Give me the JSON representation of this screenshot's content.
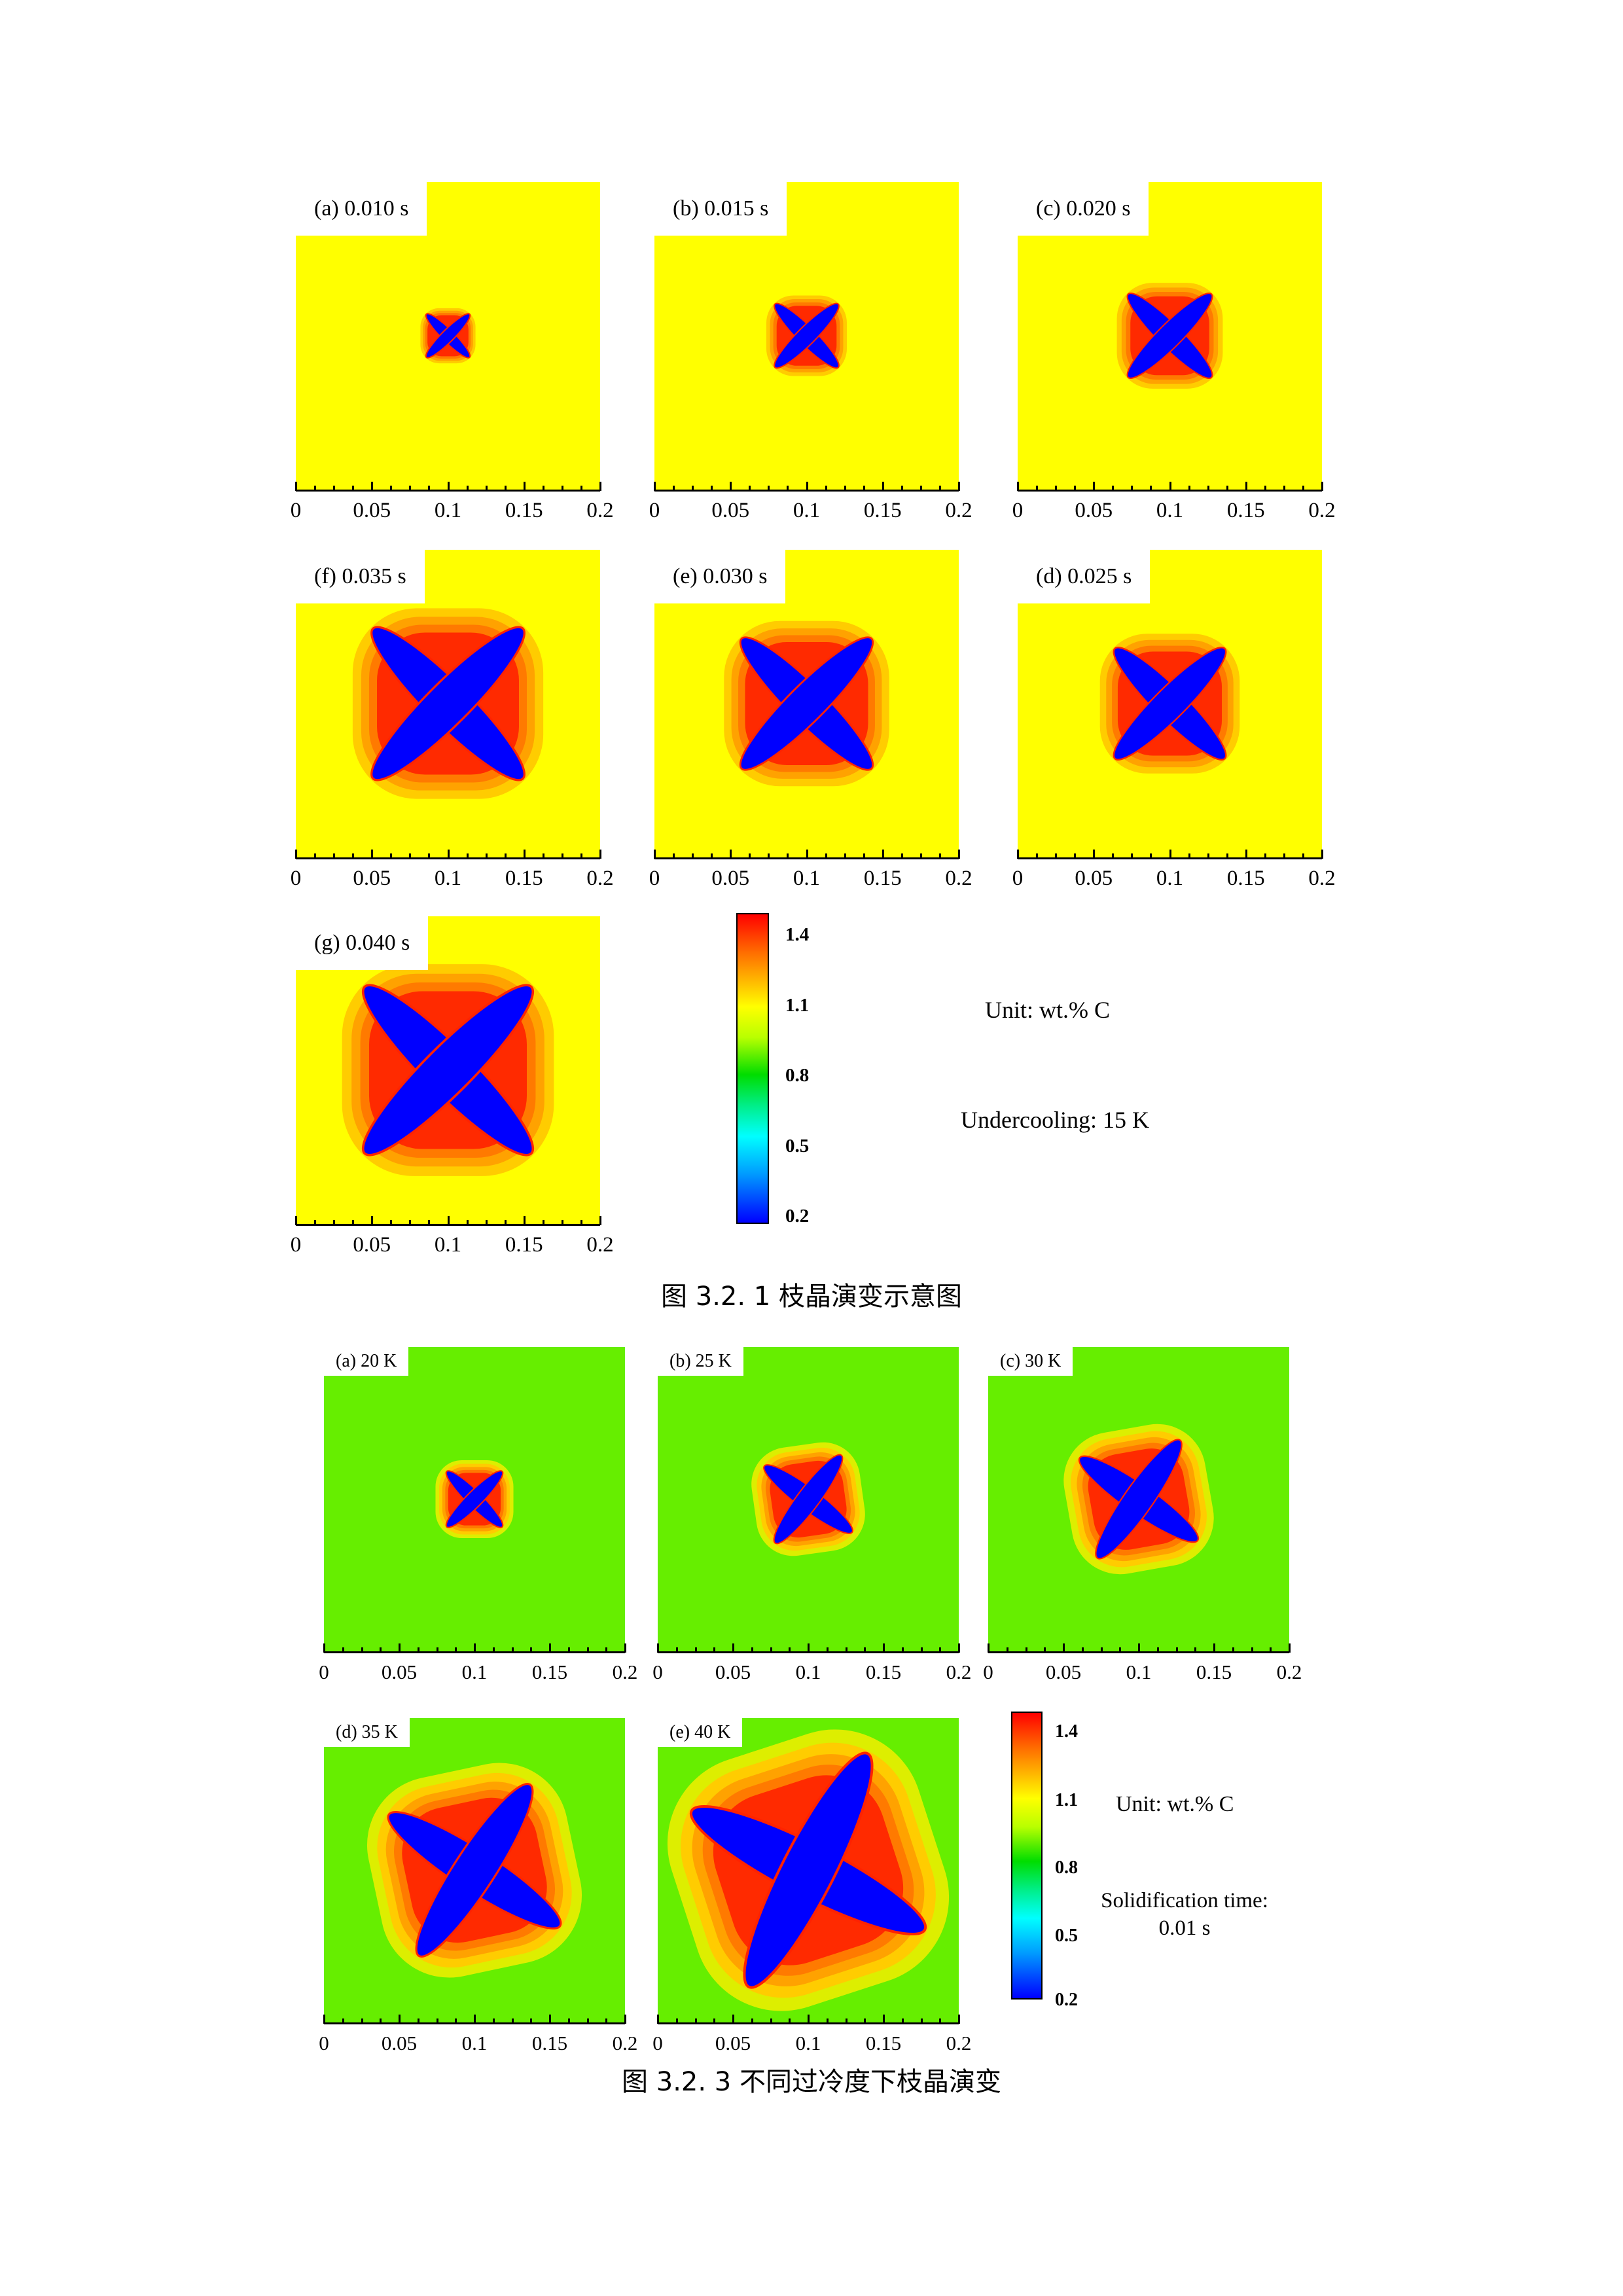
{
  "figure1": {
    "caption": "图 3.2. 1 枝晶演变示意图",
    "panels": [
      {
        "label": "(a) 0.010 s",
        "scale": 0.26
      },
      {
        "label": "(b) 0.015 s",
        "scale": 0.38
      },
      {
        "label": "(c) 0.020 s",
        "scale": 0.5
      },
      {
        "label": "(f) 0.035 s",
        "scale": 0.9
      },
      {
        "label": "(e) 0.030 s",
        "scale": 0.78
      },
      {
        "label": "(d) 0.025 s",
        "scale": 0.66
      },
      {
        "label": "(g) 0.040 s",
        "scale": 1.0
      }
    ],
    "x_ticks": [
      "0",
      "0.05",
      "0.1",
      "0.15",
      "0.2"
    ],
    "colorbar_labels": [
      "1.4",
      "1.1",
      "0.8",
      "0.5",
      "0.2"
    ],
    "unit_note": "Unit: wt.% C",
    "condition_note": "Undercooling: 15 K"
  },
  "figure2": {
    "caption": "图 3.2. 3 不同过冷度下枝晶演变",
    "panels": [
      {
        "label": "(a) 20 K",
        "scale": 0.3
      },
      {
        "label": "(b) 25 K",
        "scale": 0.42
      },
      {
        "label": "(c) 30 K",
        "scale": 0.55
      },
      {
        "label": "(d) 35 K",
        "scale": 0.78
      },
      {
        "label": "(e) 40 K",
        "scale": 1.0
      }
    ],
    "x_ticks": [
      "0",
      "0.05",
      "0.1",
      "0.15",
      "0.2"
    ],
    "colorbar_labels": [
      "1.4",
      "1.1",
      "0.8",
      "0.5",
      "0.2"
    ],
    "unit_note": "Unit: wt.% C",
    "condition_note_line1": "Solidification time:",
    "condition_note_line2": "0.01 s"
  },
  "colors": {
    "fig1_background": "#ffff00",
    "fig2_background": "#66ee00",
    "solid": "#0000ff",
    "enriched": "#ff2200"
  }
}
